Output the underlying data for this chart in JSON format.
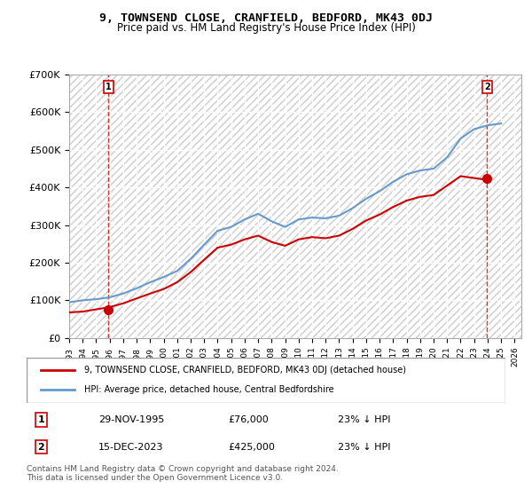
{
  "title": "9, TOWNSEND CLOSE, CRANFIELD, BEDFORD, MK43 0DJ",
  "subtitle": "Price paid vs. HM Land Registry's House Price Index (HPI)",
  "xlabel": "",
  "ylabel": "",
  "ylim": [
    0,
    700000
  ],
  "yticks": [
    0,
    100000,
    200000,
    300000,
    400000,
    500000,
    600000,
    700000
  ],
  "ytick_labels": [
    "£0",
    "£100K",
    "£200K",
    "£300K",
    "£400K",
    "£500K",
    "£600K",
    "£700K"
  ],
  "xlim_start": 1993.0,
  "xlim_end": 2026.5,
  "background_color": "#ffffff",
  "plot_bg_color": "#f0f0f0",
  "hatch_pattern": "////",
  "grid_color": "#ffffff",
  "hpi_color": "#6699cc",
  "price_color": "#cc0000",
  "sale1_year": 1995.913,
  "sale1_price": 76000,
  "sale1_label": "1",
  "sale2_year": 2023.958,
  "sale2_price": 425000,
  "sale2_label": "2",
  "legend_label1": "9, TOWNSEND CLOSE, CRANFIELD, BEDFORD, MK43 0DJ (detached house)",
  "legend_label2": "HPI: Average price, detached house, Central Bedfordshire",
  "table_row1": [
    "1",
    "29-NOV-1995",
    "£76,000",
    "23% ↓ HPI"
  ],
  "table_row2": [
    "2",
    "15-DEC-2023",
    "£425,000",
    "23% ↓ HPI"
  ],
  "footer": "Contains HM Land Registry data © Crown copyright and database right 2024.\nThis data is licensed under the Open Government Licence v3.0.",
  "hpi_years": [
    1993,
    1994,
    1995,
    1996,
    1997,
    1998,
    1999,
    2000,
    2001,
    2002,
    2003,
    2004,
    2005,
    2006,
    2007,
    2008,
    2009,
    2010,
    2011,
    2012,
    2013,
    2014,
    2015,
    2016,
    2017,
    2018,
    2019,
    2020,
    2021,
    2022,
    2023,
    2024,
    2025
  ],
  "hpi_values": [
    95000,
    100000,
    103000,
    108000,
    118000,
    132000,
    148000,
    162000,
    178000,
    210000,
    248000,
    285000,
    295000,
    315000,
    330000,
    310000,
    295000,
    315000,
    320000,
    318000,
    325000,
    345000,
    370000,
    390000,
    415000,
    435000,
    445000,
    450000,
    480000,
    530000,
    555000,
    565000,
    570000
  ],
  "price_years": [
    1993,
    1994,
    1995,
    1996,
    1997,
    1998,
    1999,
    2000,
    2001,
    2002,
    2003,
    2004,
    2005,
    2006,
    2007,
    2008,
    2009,
    2010,
    2011,
    2012,
    2013,
    2014,
    2015,
    2016,
    2017,
    2018,
    2019,
    2020,
    2021,
    2022,
    2023,
    2024
  ],
  "price_values": [
    68000,
    70000,
    76000,
    82000,
    92000,
    105000,
    118000,
    130000,
    148000,
    175000,
    208000,
    240000,
    248000,
    262000,
    272000,
    255000,
    245000,
    262000,
    268000,
    265000,
    272000,
    290000,
    312000,
    328000,
    348000,
    365000,
    375000,
    380000,
    405000,
    430000,
    425000,
    420000
  ]
}
